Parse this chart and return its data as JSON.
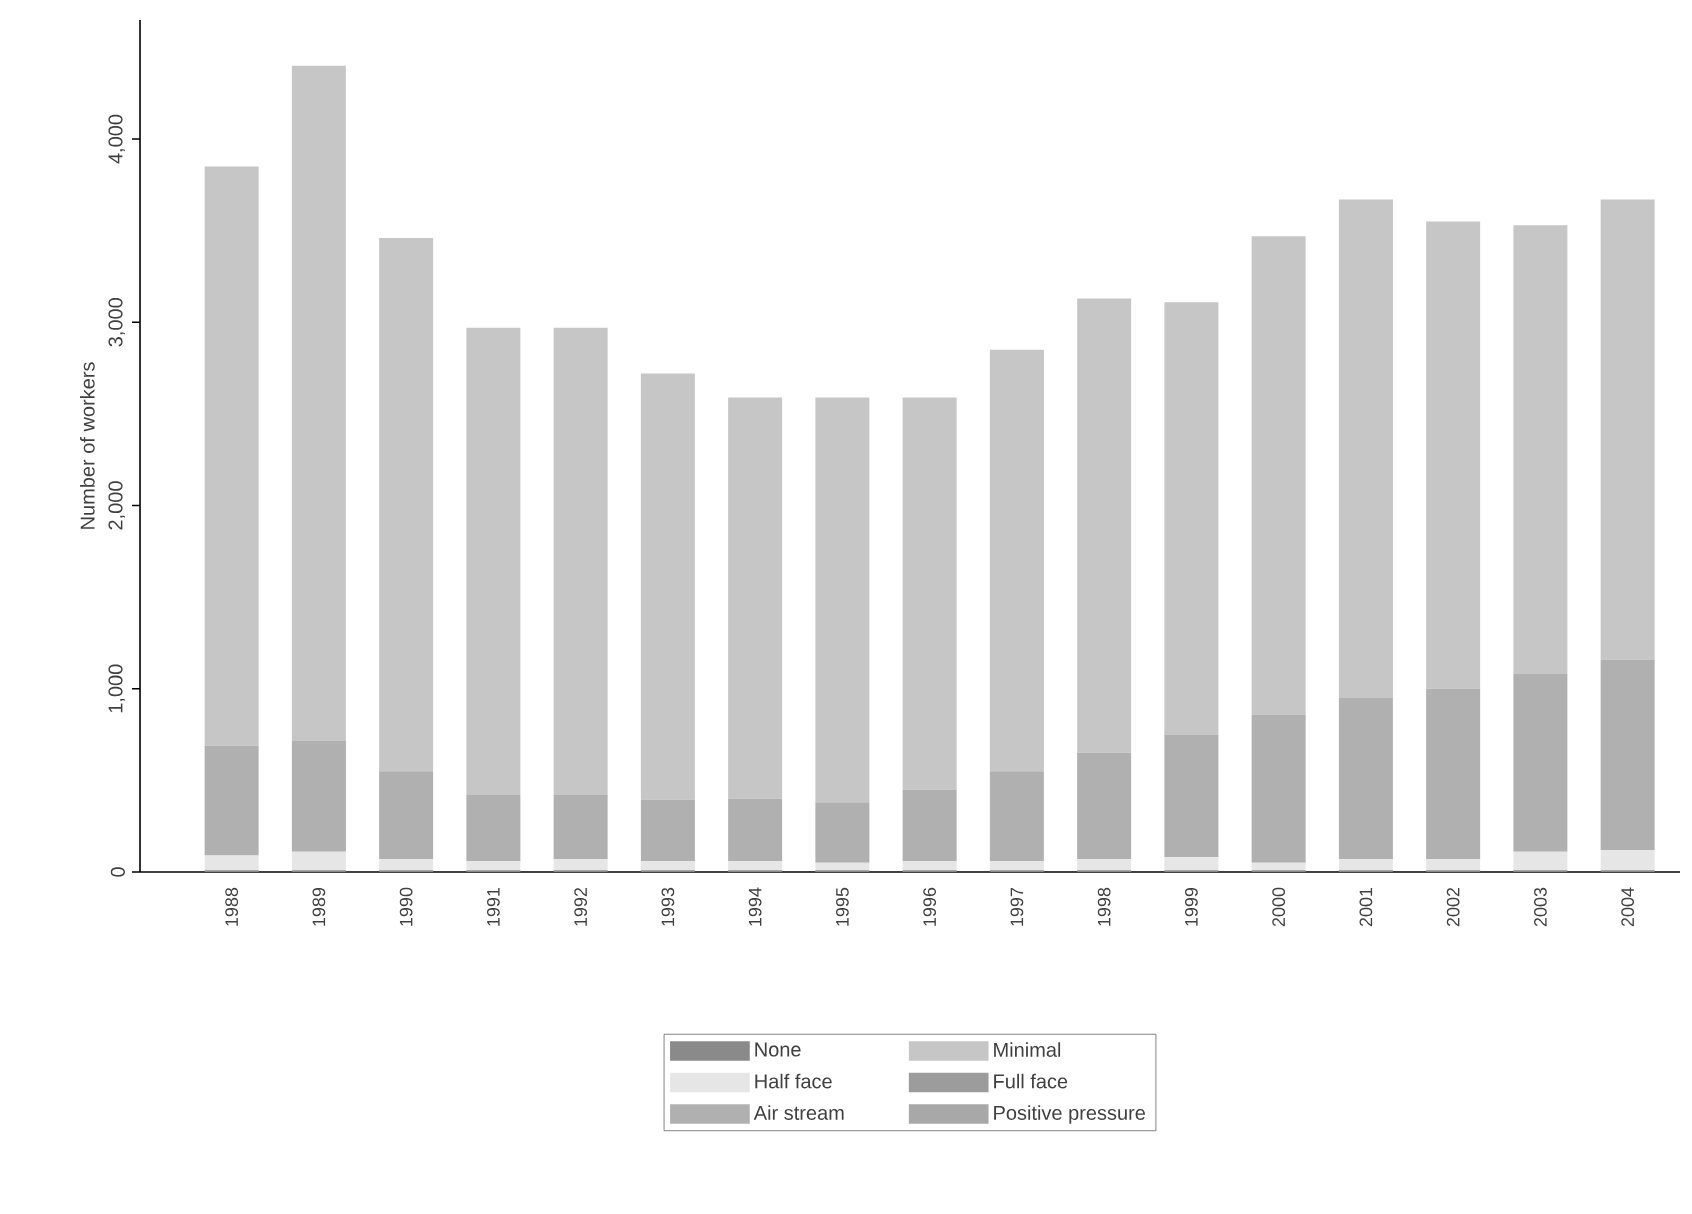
{
  "chart_data": {
    "type": "bar",
    "stacked": true,
    "ylabel": "Number of workers",
    "categories": [
      "1988",
      "1989",
      "1990",
      "1991",
      "1992",
      "1993",
      "1994",
      "1995",
      "1996",
      "1997",
      "1998",
      "1999",
      "2000",
      "2001",
      "2002",
      "2003",
      "2004"
    ],
    "series": [
      {
        "name": "None",
        "color": "#8a8a8a",
        "values": [
          10,
          10,
          10,
          10,
          10,
          10,
          10,
          10,
          10,
          10,
          10,
          10,
          10,
          10,
          10,
          10,
          10
        ]
      },
      {
        "name": "Half face",
        "color": "#e6e6e6",
        "values": [
          80,
          100,
          60,
          50,
          60,
          50,
          50,
          40,
          50,
          50,
          60,
          70,
          40,
          60,
          60,
          100,
          110
        ]
      },
      {
        "name": "Air stream",
        "color": "#b0b0b0",
        "values": [
          600,
          605,
          480,
          360,
          350,
          335,
          340,
          330,
          390,
          490,
          580,
          670,
          810,
          880,
          930,
          970,
          1040
        ]
      },
      {
        "name": "Minimal",
        "color": "#c6c6c6",
        "values": [
          3160,
          3685,
          2910,
          2550,
          2550,
          2325,
          2190,
          2210,
          2140,
          2300,
          2480,
          2360,
          2610,
          2720,
          2550,
          2450,
          2510
        ]
      },
      {
        "name": "Full face",
        "color": "#9c9c9c",
        "values": [
          0,
          0,
          0,
          0,
          0,
          0,
          0,
          0,
          0,
          0,
          0,
          0,
          0,
          0,
          0,
          0,
          0
        ]
      },
      {
        "name": "Positive pressure",
        "color": "#a8a8a8",
        "values": [
          0,
          0,
          0,
          0,
          0,
          0,
          0,
          0,
          0,
          0,
          0,
          0,
          0,
          0,
          0,
          0,
          0
        ]
      }
    ],
    "ylim": [
      0,
      4650
    ],
    "yticks": [
      0,
      {
        "value": 1000,
        "label": "1,000"
      },
      {
        "value": 2000,
        "label": "2,000"
      },
      {
        "value": 3000,
        "label": "3,000"
      },
      {
        "value": 4000,
        "label": "4,000"
      }
    ],
    "grid": false,
    "legend": "bottom"
  }
}
